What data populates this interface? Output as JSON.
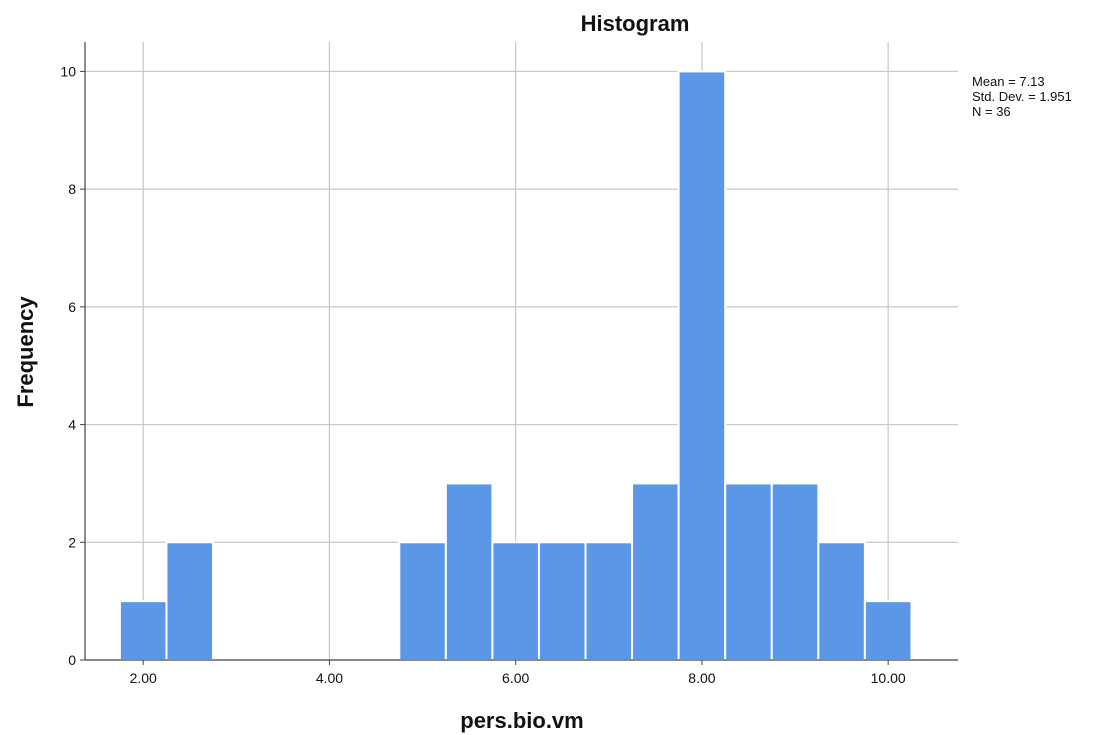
{
  "chart_data": {
    "type": "histogram",
    "title": "Histogram",
    "xlabel": "pers.bio.vm",
    "ylabel": "Frequency",
    "xlim": [
      1.375,
      10.75
    ],
    "ylim": [
      0,
      10.5
    ],
    "x_ticks": [
      {
        "value": 2,
        "label": "2.00"
      },
      {
        "value": 4,
        "label": "4.00"
      },
      {
        "value": 6,
        "label": "6.00"
      },
      {
        "value": 8,
        "label": "8.00"
      },
      {
        "value": 10,
        "label": "10.00"
      }
    ],
    "y_ticks": [
      {
        "value": 0,
        "label": "0"
      },
      {
        "value": 2,
        "label": "2"
      },
      {
        "value": 4,
        "label": "4"
      },
      {
        "value": 6,
        "label": "6"
      },
      {
        "value": 8,
        "label": "8"
      },
      {
        "value": 10,
        "label": "10"
      }
    ],
    "bin_width": 0.5,
    "bins": [
      {
        "x0": 1.75,
        "x1": 2.25,
        "count": 1
      },
      {
        "x0": 2.25,
        "x1": 2.75,
        "count": 2
      },
      {
        "x0": 4.75,
        "x1": 5.25,
        "count": 2
      },
      {
        "x0": 5.25,
        "x1": 5.75,
        "count": 3
      },
      {
        "x0": 5.75,
        "x1": 6.25,
        "count": 2
      },
      {
        "x0": 6.25,
        "x1": 6.75,
        "count": 2
      },
      {
        "x0": 6.75,
        "x1": 7.25,
        "count": 2
      },
      {
        "x0": 7.25,
        "x1": 7.75,
        "count": 3
      },
      {
        "x0": 7.75,
        "x1": 8.25,
        "count": 10
      },
      {
        "x0": 8.25,
        "x1": 8.75,
        "count": 3
      },
      {
        "x0": 8.75,
        "x1": 9.25,
        "count": 3
      },
      {
        "x0": 9.25,
        "x1": 9.75,
        "count": 2
      },
      {
        "x0": 9.75,
        "x1": 10.25,
        "count": 1
      }
    ],
    "stats": {
      "mean": "Mean = 7.13",
      "std": "Std. Dev. = 1.951",
      "n": "N = 36"
    },
    "grid": true,
    "colors": {
      "bar_fill": "#5b97e6",
      "bar_stroke": "#ffffff",
      "grid": "#c8c8c8",
      "axis": "#444444"
    }
  }
}
